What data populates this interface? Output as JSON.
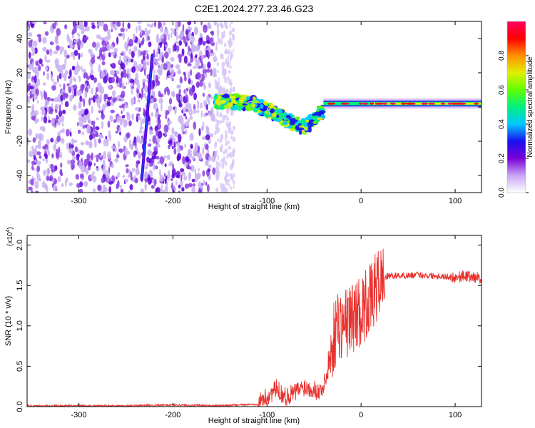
{
  "title": "C2E1.2024.277.23.46.G23",
  "chart_data": [
    {
      "type": "heatmap",
      "xlabel": "Height of straight line (km)",
      "ylabel": "Frequency (Hz)",
      "xlim": [
        -355,
        128
      ],
      "ylim": [
        -50,
        50
      ],
      "xticks": [
        -300,
        -200,
        -100,
        0,
        100
      ],
      "yticks": [
        -40,
        -20,
        0,
        20,
        40
      ],
      "colorbar": {
        "label": "Normalized spectral amplitude",
        "range": [
          0,
          1
        ],
        "ticks": [
          "0.0",
          "0.2",
          "0.4",
          "0.6",
          "0.8"
        ],
        "tick_values": [
          0,
          0.2,
          0.4,
          0.6,
          0.8
        ],
        "colors": [
          "#ffffff",
          "#c9a6f5",
          "#7a00d6",
          "#1a10f0",
          "#00c8ff",
          "#00f080",
          "#60ff00",
          "#e0f000",
          "#ff9000",
          "#ff0000",
          "#ff0060"
        ]
      },
      "regions": [
        {
          "x": [
            -355,
            -155
          ],
          "f": [
            -50,
            50
          ],
          "amplitude": 0.15
        },
        {
          "x": [
            -155,
            -135
          ],
          "f": [
            -50,
            50
          ],
          "amplitude": 0.05
        },
        {
          "x": [
            -155,
            -40
          ],
          "f_center": [
            3,
            3,
            2,
            -2,
            -8,
            -12,
            -2
          ],
          "amplitude": 0.5
        },
        {
          "x": [
            -40,
            128
          ],
          "f_center": [
            2,
            2
          ],
          "amplitude": 0.75
        }
      ],
      "streak": {
        "x": [
          -233,
          -222
        ],
        "f": [
          -42,
          30
        ]
      },
      "grid": false
    },
    {
      "type": "line",
      "xlabel": "Height of straight line (km)",
      "ylabel": "SNR (10 * v/v)",
      "multiplier": "(x10^4)",
      "xlim": [
        -355,
        128
      ],
      "ylim": [
        0,
        2.12
      ],
      "xticks": [
        -300,
        -200,
        -100,
        0,
        100
      ],
      "yticks": [
        "0.0",
        "0.5",
        "1.0",
        "1.5",
        "2.0"
      ],
      "ytick_values": [
        0,
        0.5,
        1,
        1.5,
        2
      ],
      "series": [
        {
          "color": "#e8302c",
          "x": [
            -355,
            -300,
            -250,
            -200,
            -150,
            -110,
            -100,
            -90,
            -80,
            -70,
            -60,
            -50,
            -45,
            -40,
            -35,
            -30,
            -25,
            -20,
            -15,
            -10,
            -5,
            0,
            5,
            8,
            10,
            15,
            20,
            25,
            30,
            40,
            60,
            80,
            100,
            110,
            120,
            128
          ],
          "values": [
            0.01,
            0.01,
            0.01,
            0.02,
            0.01,
            0.03,
            0.12,
            0.22,
            0.12,
            0.18,
            0.25,
            0.22,
            0.18,
            0.25,
            0.45,
            0.8,
            1.05,
            1.0,
            1.05,
            1.1,
            1.15,
            1.2,
            1.25,
            1.35,
            1.3,
            1.45,
            1.55,
            1.6,
            1.62,
            1.62,
            1.63,
            1.62,
            1.6,
            1.62,
            1.6,
            1.6
          ]
        }
      ],
      "grid": false
    }
  ]
}
